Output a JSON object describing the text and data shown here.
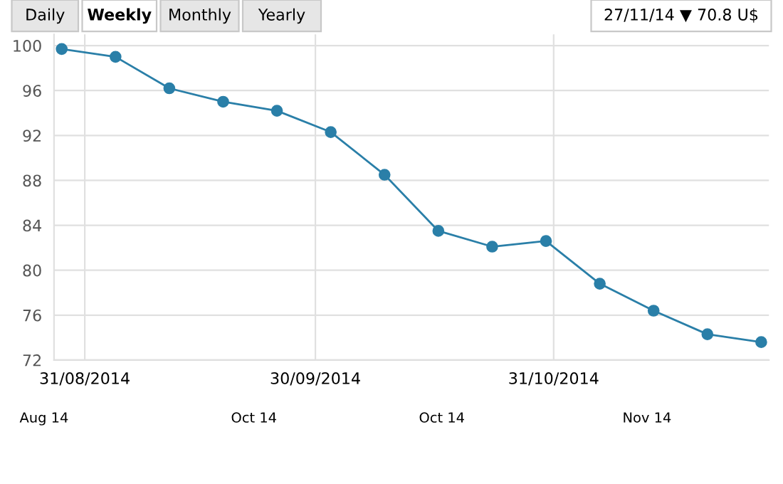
{
  "chart_data": {
    "type": "line",
    "x": [
      "2014-08-28",
      "2014-09-04",
      "2014-09-11",
      "2014-09-18",
      "2014-09-25",
      "2014-10-02",
      "2014-10-09",
      "2014-10-16",
      "2014-10-23",
      "2014-10-30",
      "2014-11-06",
      "2014-11-13",
      "2014-11-20",
      "2014-11-27"
    ],
    "series": [
      {
        "color": "#2a7fa8",
        "values": [
          99.7,
          99.0,
          96.2,
          95.0,
          94.2,
          92.3,
          88.5,
          83.5,
          82.1,
          82.6,
          78.8,
          76.4,
          74.3,
          73.6
        ]
      }
    ],
    "xlim": [
      "2014-08-27",
      "2014-11-28"
    ],
    "xticks": [
      {
        "value": "2014-08-31",
        "label": "31/08/2014"
      },
      {
        "value": "2014-09-30",
        "label": "30/09/2014"
      },
      {
        "value": "2014-10-31",
        "label": "31/10/2014"
      }
    ],
    "ylim": [
      72,
      101
    ],
    "yticks": [
      72,
      76,
      80,
      84,
      88,
      92,
      96,
      100
    ],
    "grid": true,
    "marker": "circle",
    "line_style": "solid",
    "legend": false,
    "annotations": [
      "Daily",
      "Weekly",
      "Monthly",
      "Yearly",
      "27/11/14 ▼ 70.8 U$",
      "Aug 14",
      "Oct 14",
      "Oct 14",
      "Nov 14"
    ]
  }
}
